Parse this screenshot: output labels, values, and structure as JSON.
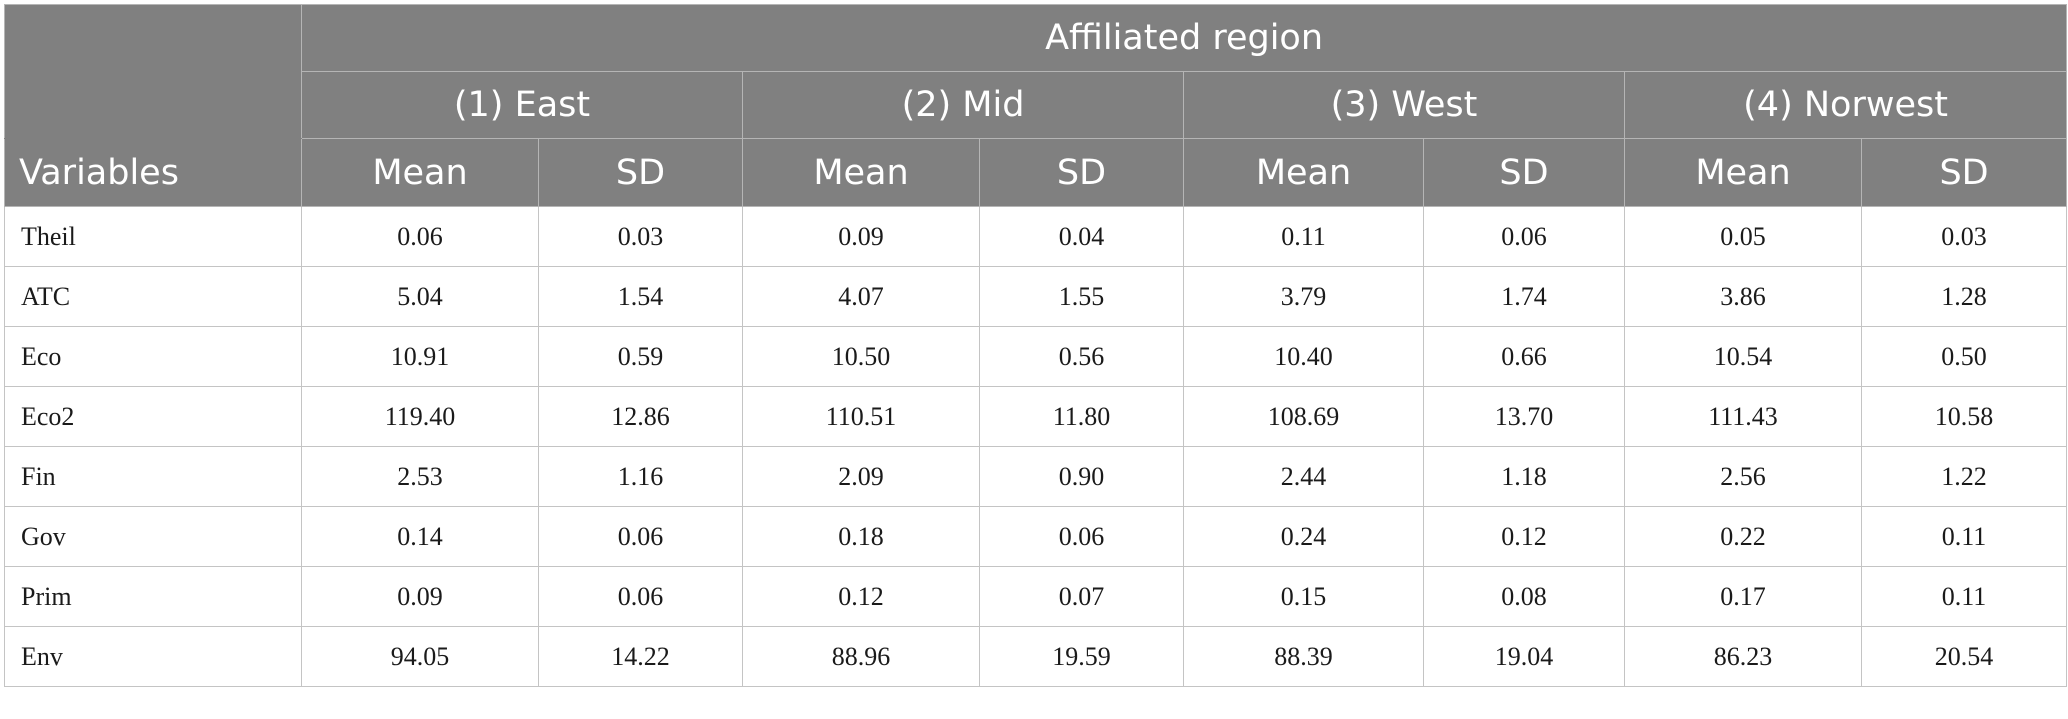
{
  "header": {
    "group_title": "Affiliated region",
    "regions": [
      "(1) East",
      "(2) Mid",
      "(3) West",
      "(4) Norwest"
    ],
    "variables_label": "Variables",
    "mean_label": "Mean",
    "sd_label": "SD"
  },
  "rows": [
    {
      "var": "Theil",
      "v": [
        "0.06",
        "0.03",
        "0.09",
        "0.04",
        "0.11",
        "0.06",
        "0.05",
        "0.03"
      ]
    },
    {
      "var": "ATC",
      "v": [
        "5.04",
        "1.54",
        "4.07",
        "1.55",
        "3.79",
        "1.74",
        "3.86",
        "1.28"
      ]
    },
    {
      "var": "Eco",
      "v": [
        "10.91",
        "0.59",
        "10.50",
        "0.56",
        "10.40",
        "0.66",
        "10.54",
        "0.50"
      ]
    },
    {
      "var": "Eco2",
      "v": [
        "119.40",
        "12.86",
        "110.51",
        "11.80",
        "108.69",
        "13.70",
        "111.43",
        "10.58"
      ]
    },
    {
      "var": "Fin",
      "v": [
        "2.53",
        "1.16",
        "2.09",
        "0.90",
        "2.44",
        "1.18",
        "2.56",
        "1.22"
      ]
    },
    {
      "var": "Gov",
      "v": [
        "0.14",
        "0.06",
        "0.18",
        "0.06",
        "0.24",
        "0.12",
        "0.22",
        "0.11"
      ]
    },
    {
      "var": "Prim",
      "v": [
        "0.09",
        "0.06",
        "0.12",
        "0.07",
        "0.15",
        "0.08",
        "0.17",
        "0.11"
      ]
    },
    {
      "var": "Env",
      "v": [
        "94.05",
        "14.22",
        "88.96",
        "19.59",
        "88.39",
        "19.04",
        "86.23",
        "20.54"
      ]
    }
  ]
}
